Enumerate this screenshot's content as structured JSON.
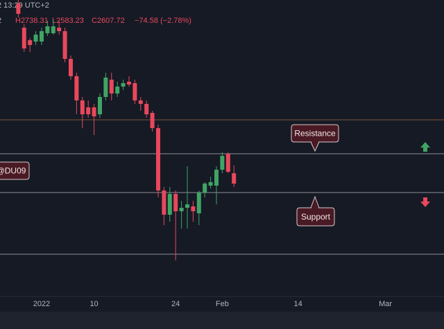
{
  "chart_data": {
    "type": "candlestick",
    "header": "2 13:29 UTC+2",
    "info": [
      "2",
      "H2738.31",
      "L2583.23",
      "C2607.72",
      "−74.58 (−2.78%)"
    ],
    "x": [
      -4,
      -3,
      -2,
      -1,
      0,
      1,
      2,
      3,
      4,
      5,
      6,
      7,
      8,
      9,
      10,
      11,
      12,
      13,
      14,
      15,
      16,
      17,
      18,
      19,
      20,
      21,
      22,
      23,
      24,
      25,
      26,
      27,
      28,
      29,
      30,
      31,
      32,
      33
    ],
    "open": [
      3908,
      3733,
      3643,
      3633,
      3633,
      3693,
      3693,
      3733,
      3708,
      3508,
      3383,
      3208,
      3158,
      3158,
      3108,
      3233,
      3358,
      3258,
      3308,
      3343,
      3333,
      3208,
      3183,
      3118,
      3008,
      2558,
      2383,
      2533,
      2408,
      2433,
      2443,
      2393,
      2543,
      2593,
      2593,
      2708,
      2823,
      2682.3
    ],
    "high": [
      3933,
      3758,
      3658,
      3708,
      3733,
      3783,
      3793,
      3783,
      3733,
      3533,
      3408,
      3233,
      3208,
      3183,
      3258,
      3408,
      3408,
      3343,
      3358,
      3383,
      3358,
      3233,
      3208,
      3133,
      3033,
      2583,
      2583,
      2558,
      2483,
      2733,
      2483,
      2558,
      2618,
      2658,
      2733,
      2833,
      2833,
      2738.31
    ],
    "low": [
      3808,
      3558,
      3558,
      3608,
      3608,
      3673,
      3683,
      3683,
      3483,
      3358,
      3108,
      3008,
      3083,
      2958,
      3083,
      3208,
      3208,
      3233,
      3283,
      3308,
      3183,
      3133,
      3083,
      2983,
      2508,
      2308,
      2333,
      2053,
      2283,
      2283,
      2333,
      2308,
      2508,
      2573,
      2458,
      2683,
      2683,
      2583.23
    ],
    "close": [
      3833,
      3583,
      3608,
      3683,
      3708,
      3743,
      3743,
      3708,
      3508,
      3383,
      3208,
      3108,
      3108,
      3093,
      3233,
      3373,
      3258,
      3308,
      3333,
      3323,
      3208,
      3183,
      3108,
      3008,
      2558,
      2383,
      2533,
      2408,
      2433,
      2458,
      2408,
      2543,
      2608,
      2618,
      2708,
      2808,
      2693,
      2607.72
    ],
    "up_color": "#3fa565",
    "down_color": "#e8485c",
    "xlim": [
      -7.14,
      69.05
    ],
    "xticks": [
      {
        "value": 0,
        "label": "2022"
      },
      {
        "value": 9,
        "label": "10"
      },
      {
        "value": 23,
        "label": "24"
      },
      {
        "value": 31,
        "label": "Feb"
      },
      {
        "value": 44,
        "label": "14"
      },
      {
        "value": 59,
        "label": "Mar"
      }
    ],
    "ylim": [
      1793,
      3933
    ],
    "levels": [
      {
        "value": 3068,
        "color": "#7a5238"
      },
      {
        "value": 2823,
        "color": "#8d8f96"
      },
      {
        "value": 2543,
        "color": "#8d8f96"
      },
      {
        "value": 2098,
        "color": "#8d8f96"
      }
    ],
    "annotations": [
      "Resistance",
      "Support",
      "@DU09"
    ]
  }
}
